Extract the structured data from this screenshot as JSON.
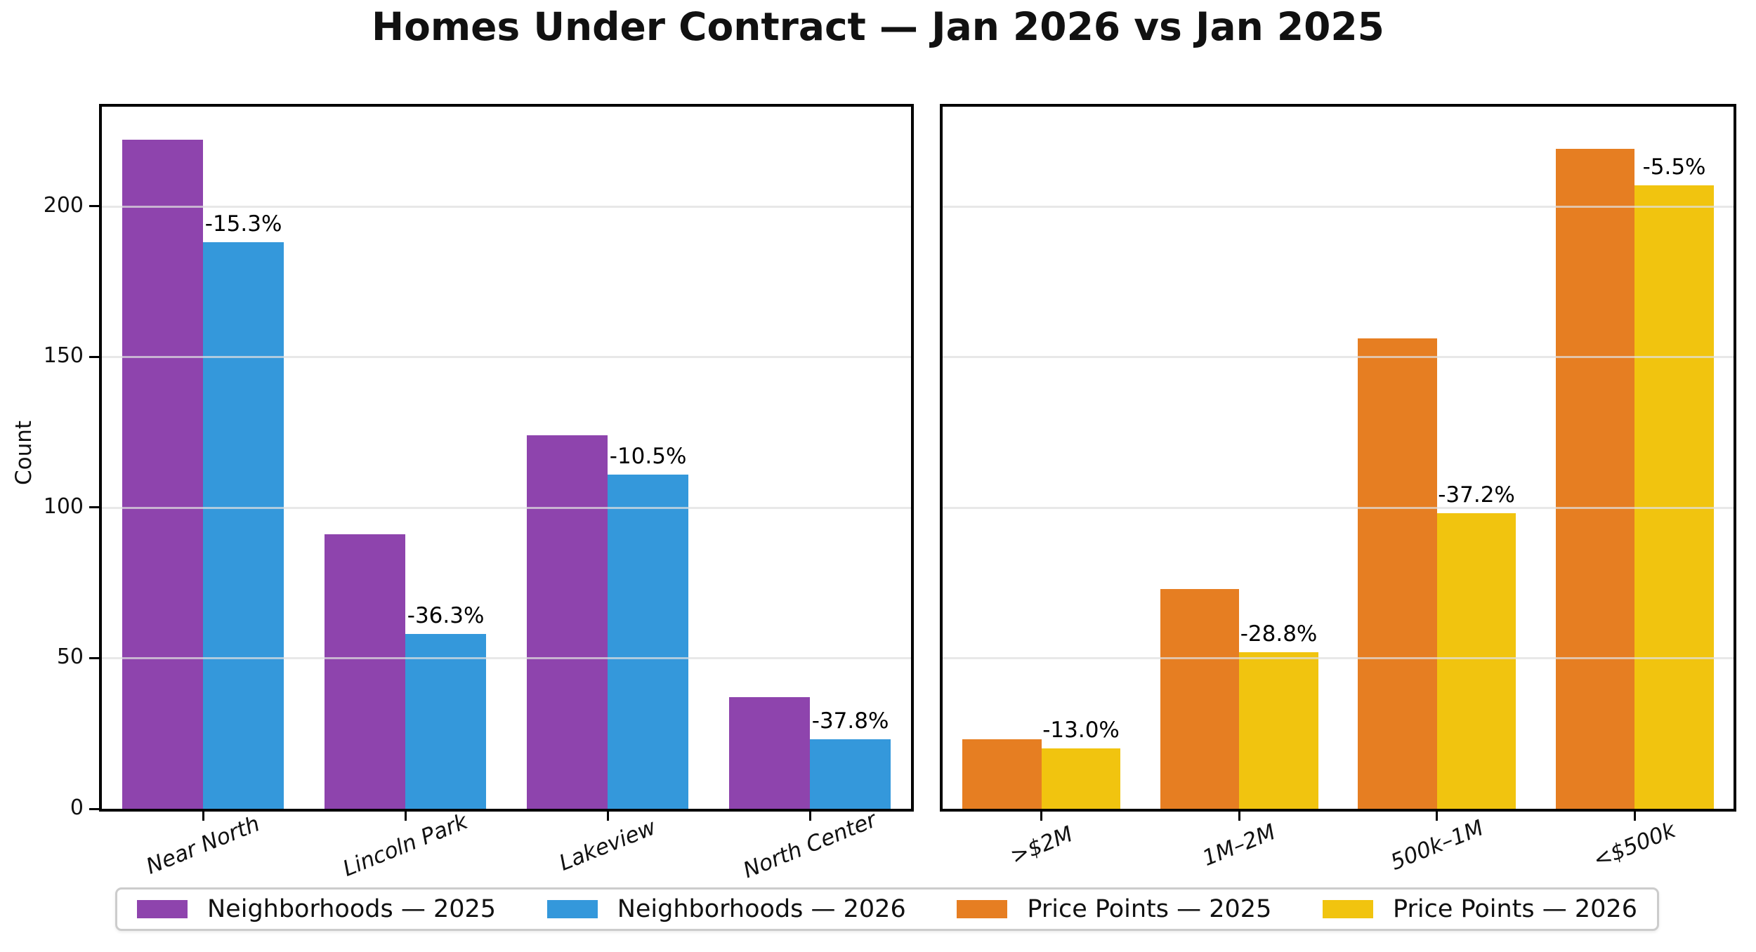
{
  "title": "Homes Under Contract — Jan 2026 vs Jan 2025",
  "ylabel": "Count",
  "yticks": [
    0,
    50,
    100,
    150,
    200
  ],
  "colors": {
    "neighborhoods_2025": "#8e44ad",
    "neighborhoods_2026": "#3498db",
    "price_points_2025": "#e67e22",
    "price_points_2026": "#f1c40f",
    "grid": "#dfdfdf",
    "spine": "#000000",
    "legend_border": "#cccccc"
  },
  "legend": [
    {
      "label": "Neighborhoods — 2025",
      "color": "#8e44ad"
    },
    {
      "label": "Neighborhoods — 2026",
      "color": "#3498db"
    },
    {
      "label": "Price Points — 2025",
      "color": "#e67e22"
    },
    {
      "label": "Price Points — 2026",
      "color": "#f1c40f"
    }
  ],
  "chart_data": [
    {
      "type": "bar",
      "panel": "Neighborhoods",
      "categories": [
        "Near North",
        "Lincoln Park",
        "Lakeview",
        "North Center"
      ],
      "series": [
        {
          "name": "Neighborhoods — 2025",
          "color": "#8e44ad",
          "values": [
            222,
            91,
            124,
            37
          ]
        },
        {
          "name": "Neighborhoods — 2026",
          "color": "#3498db",
          "values": [
            188,
            58,
            111,
            23
          ]
        }
      ],
      "pct_change_labels": [
        "-15.3%",
        "-36.3%",
        "-10.5%",
        "-37.8%"
      ],
      "ylabel": "Count",
      "ylim": [
        0,
        233
      ],
      "yticks": [
        0,
        50,
        100,
        150,
        200
      ],
      "grid": true,
      "legend_position": "bottom"
    },
    {
      "type": "bar",
      "panel": "Price Points",
      "categories": [
        ">$2M",
        "1M–2M",
        "500k–1M",
        "<$500k"
      ],
      "series": [
        {
          "name": "Price Points — 2025",
          "color": "#e67e22",
          "values": [
            23,
            73,
            156,
            219
          ]
        },
        {
          "name": "Price Points — 2026",
          "color": "#f1c40f",
          "values": [
            20,
            52,
            98,
            207
          ]
        }
      ],
      "pct_change_labels": [
        "-13.0%",
        "-28.8%",
        "-37.2%",
        "-5.5%"
      ],
      "ylabel": "",
      "ylim": [
        0,
        233
      ],
      "yticks": [
        0,
        50,
        100,
        150,
        200
      ],
      "grid": true,
      "legend_position": "bottom"
    }
  ]
}
